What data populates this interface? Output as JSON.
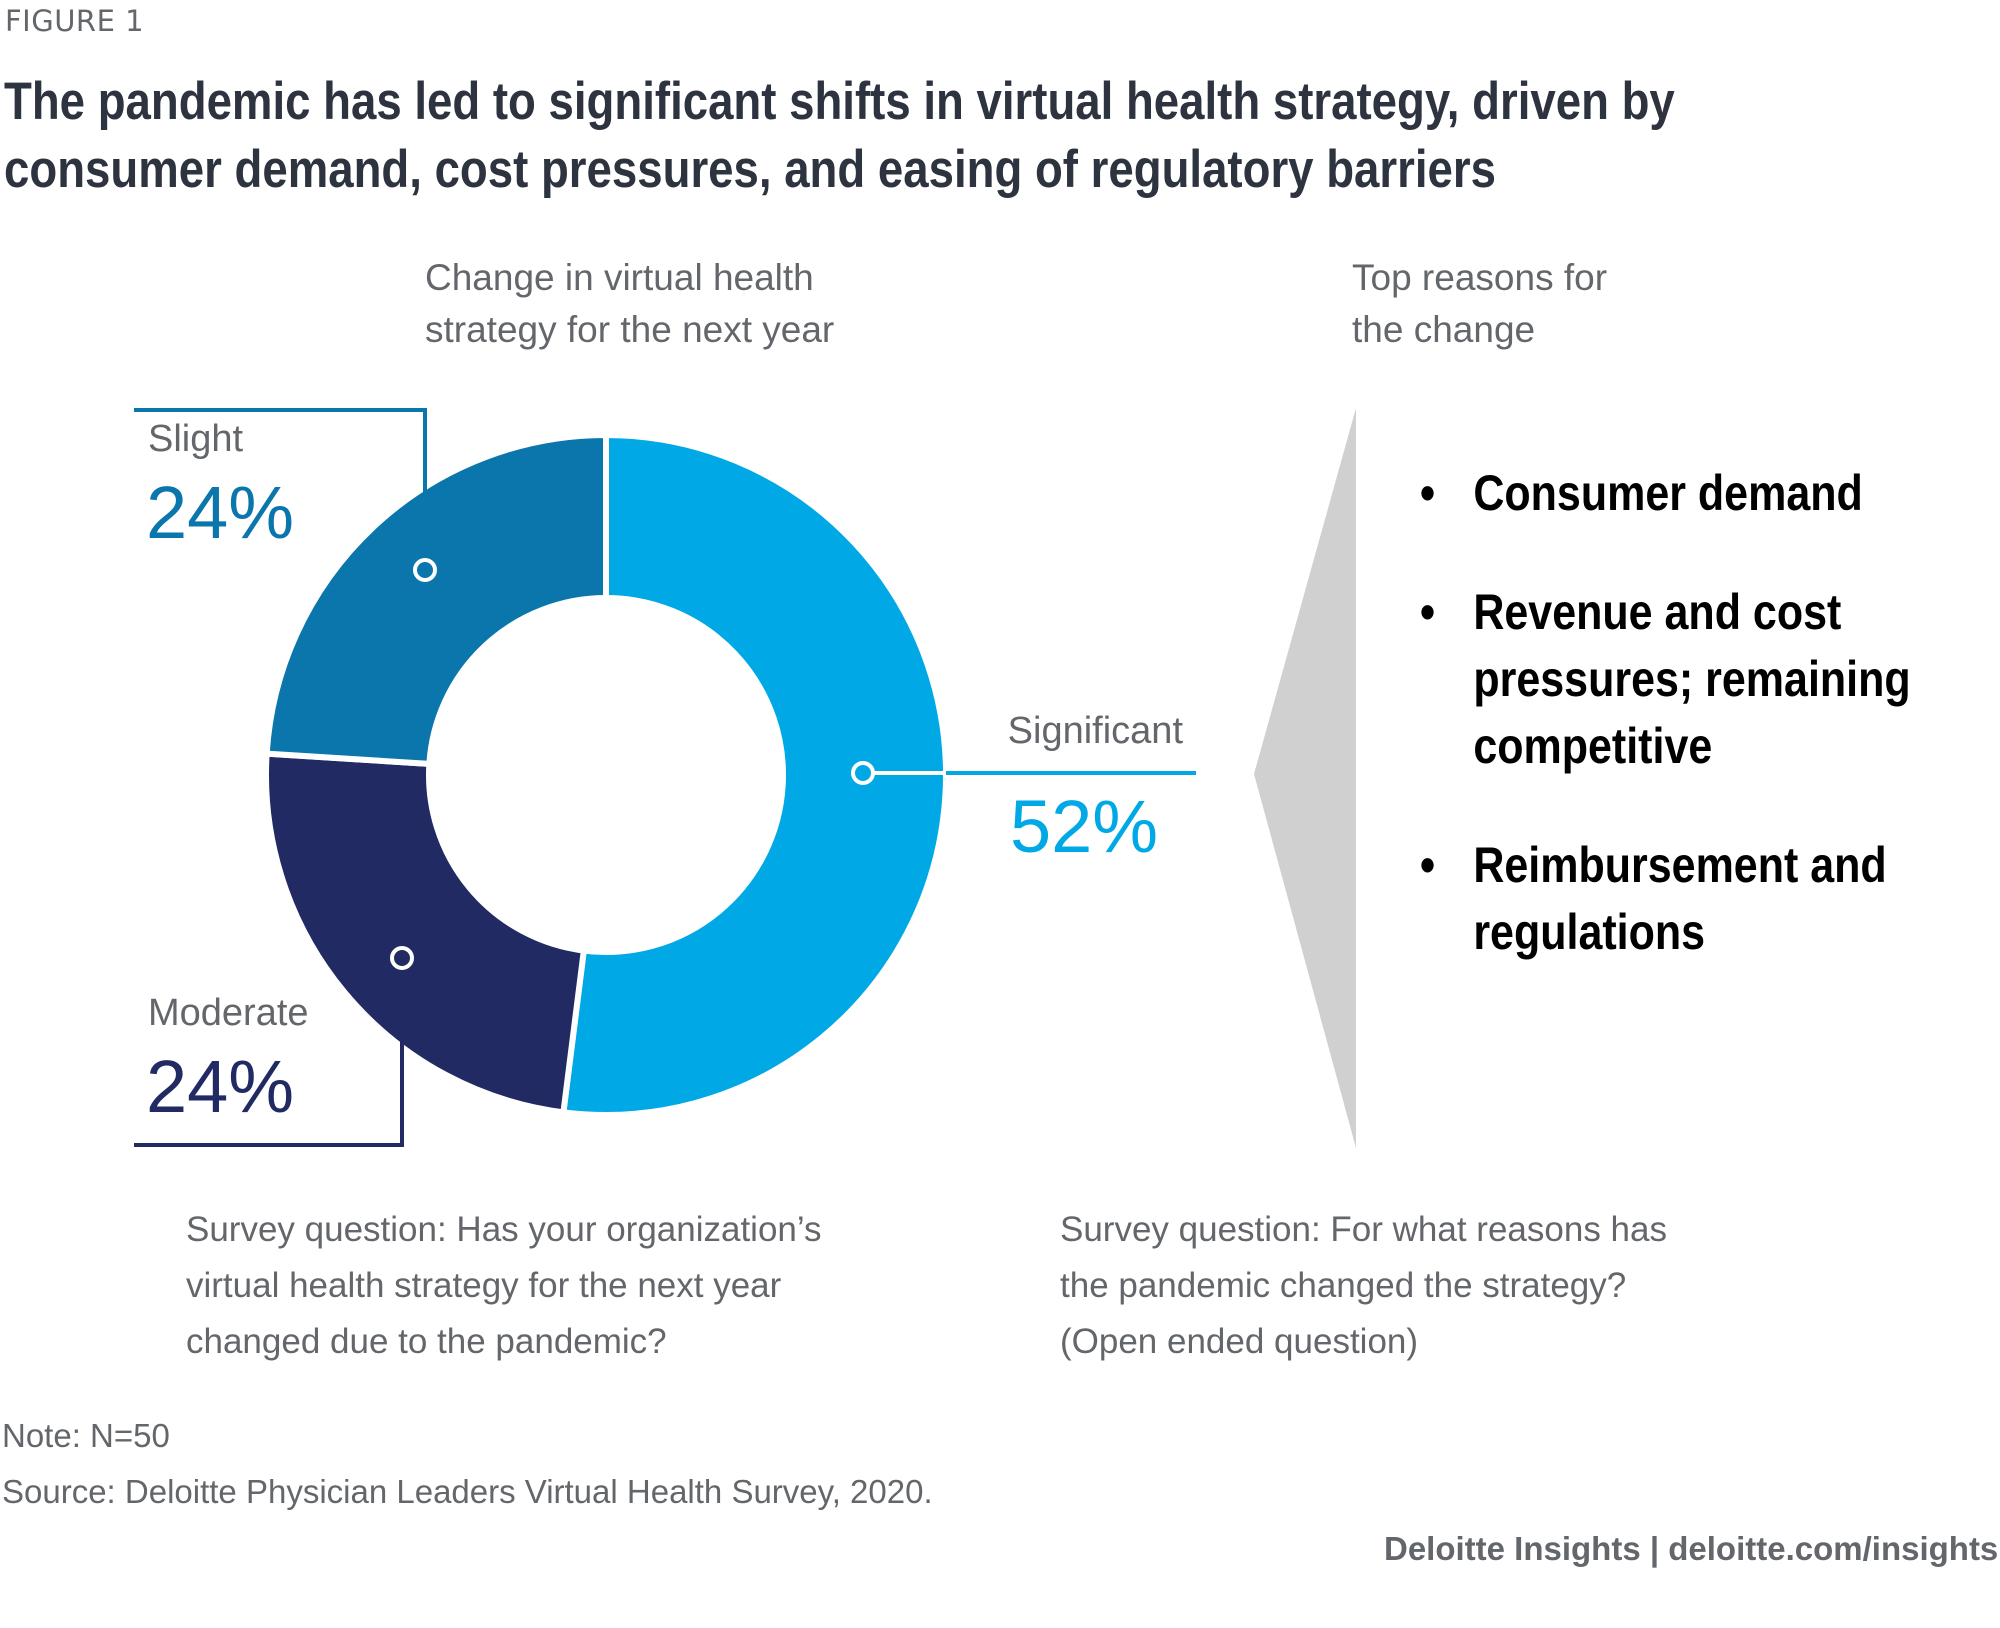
{
  "figure_label": "FIGURE 1",
  "title_lines": [
    "The pandemic has led to significant shifts in virtual health strategy, driven by",
    "consumer demand, cost pressures, and easing of regulatory barriers"
  ],
  "left_panel": {
    "heading_lines": [
      "Change in virtual health",
      "strategy for the next year"
    ],
    "question_lines": [
      "Survey question: Has your organization’s",
      "virtual health strategy for the next year",
      "changed due to the pandemic?"
    ]
  },
  "right_panel": {
    "heading_lines": [
      "Top reasons for",
      "the change"
    ],
    "bullet_glyph": "•",
    "reasons": [
      "Consumer demand",
      "Revenue and cost pressures; remaining competitive",
      "Reimbursement and regulations"
    ],
    "question_lines": [
      "Survey question: For what reasons has",
      "the pandemic changed the strategy?",
      "(Open ended question)"
    ]
  },
  "chart_data": {
    "type": "pie",
    "subtype": "donut",
    "title": "Change in virtual health strategy for the next year",
    "categories": [
      "Significant",
      "Moderate",
      "Slight"
    ],
    "values": [
      52,
      24,
      24
    ],
    "labels": [
      "52%",
      "24%",
      "24%"
    ],
    "colors": [
      "#00a9e6",
      "#212a63",
      "#0b76ab"
    ],
    "start_angle_deg": 0,
    "direction": "clockwise",
    "legend": "none"
  },
  "colors": {
    "significant": "#00a9e6",
    "moderate": "#212a63",
    "slight": "#0b76ab",
    "wedge": "#d0d0d0",
    "text_grey": "#63666a",
    "title": "#2e3340"
  },
  "notes": {
    "note": "Note: N=50",
    "source": "Source: Deloitte Physician Leaders Virtual Health Survey, 2020."
  },
  "footer": "Deloitte Insights | deloitte.com/insights"
}
